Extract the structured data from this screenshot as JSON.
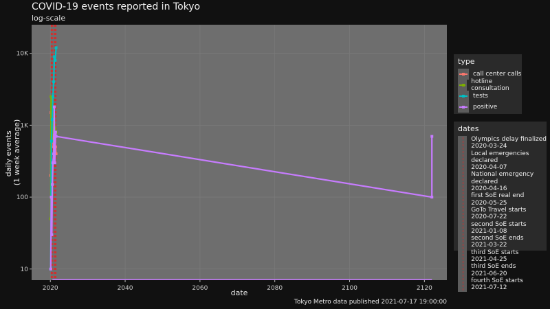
{
  "title": "COVID-19 events reported in Tokyo",
  "subtitle": "log-scale",
  "caption": "Tokyo Metro data published 2021-07-17 19:00:00",
  "legend_type": {
    "title": "type",
    "items": [
      {
        "label": "call center calls",
        "color": "#f8766d"
      },
      {
        "label": "hotline consultation",
        "color": "#7cae00"
      },
      {
        "label": "tests",
        "color": "#00bfc4"
      },
      {
        "label": "positive",
        "color": "#c77cff"
      }
    ]
  },
  "legend_dates": {
    "title": "dates",
    "items": [
      "Olympics delay finalized",
      "2020-03-24",
      "Local emergencies declared",
      "2020-04-07",
      "National emergency declared",
      "2020-04-16",
      "first SoE real end",
      "2020-05-25",
      "GoTo Travel starts",
      "2020-07-22",
      "second SoE starts",
      "2021-01-08",
      "second SoE ends",
      "2021-03-22",
      "third SoE starts",
      "2021-04-25",
      "third SoE ends",
      "2021-06-20",
      "fourth SoE starts",
      "2021-07-12"
    ]
  },
  "chart_data": {
    "type": "line",
    "xlabel": "date",
    "ylabel": "daily events\n(1 week average)",
    "x_scale": "linear",
    "y_scale": "log",
    "xlim": [
      2015,
      2126
    ],
    "ylim": [
      7,
      25000
    ],
    "x_ticks": [
      2020,
      2040,
      2060,
      2080,
      2100,
      2120
    ],
    "y_ticks": [
      {
        "value": 10,
        "label": "10"
      },
      {
        "value": 100,
        "label": "100"
      },
      {
        "value": 1000,
        "label": "1K"
      },
      {
        "value": 10000,
        "label": "10K"
      }
    ],
    "grid": true,
    "event_lines": [
      2020.23,
      2020.27,
      2020.29,
      2020.4,
      2020.56,
      2021.02,
      2021.22,
      2021.31,
      2021.47,
      2021.53
    ],
    "series": [
      {
        "name": "call center calls",
        "color": "#f8766d",
        "x": [
          2020.1,
          2020.2,
          2020.3,
          2020.4,
          2020.6,
          2020.8,
          2021.0,
          2021.2,
          2021.4,
          2021.54
        ],
        "y": [
          200,
          1500,
          2500,
          1000,
          700,
          500,
          900,
          600,
          500,
          400
        ]
      },
      {
        "name": "hotline consultation",
        "color": "#7cae00",
        "x": [
          2020.1,
          2020.2,
          2020.3,
          2020.4,
          2020.6,
          2020.8,
          2021.0,
          2021.2,
          2021.4,
          2021.54
        ],
        "y": [
          50,
          2500,
          1800,
          600,
          1000,
          800,
          1800,
          900,
          700,
          800
        ]
      },
      {
        "name": "tests",
        "color": "#00bfc4",
        "x": [
          2020.1,
          2020.3,
          2020.5,
          2020.7,
          2020.9,
          2021.1,
          2021.3,
          2021.54
        ],
        "y": [
          10,
          600,
          1200,
          2500,
          4000,
          9000,
          8000,
          12000
        ]
      },
      {
        "name": "positive",
        "color": "#c77cff",
        "x": [
          2020.1,
          2020.25,
          2020.4,
          2020.55,
          2020.7,
          2020.9,
          2021.05,
          2021.2,
          2021.4,
          2021.54,
          2122,
          2122
        ],
        "y": [
          10,
          100,
          30,
          150,
          300,
          400,
          1800,
          300,
          800,
          700,
          100,
          700
        ]
      }
    ]
  }
}
